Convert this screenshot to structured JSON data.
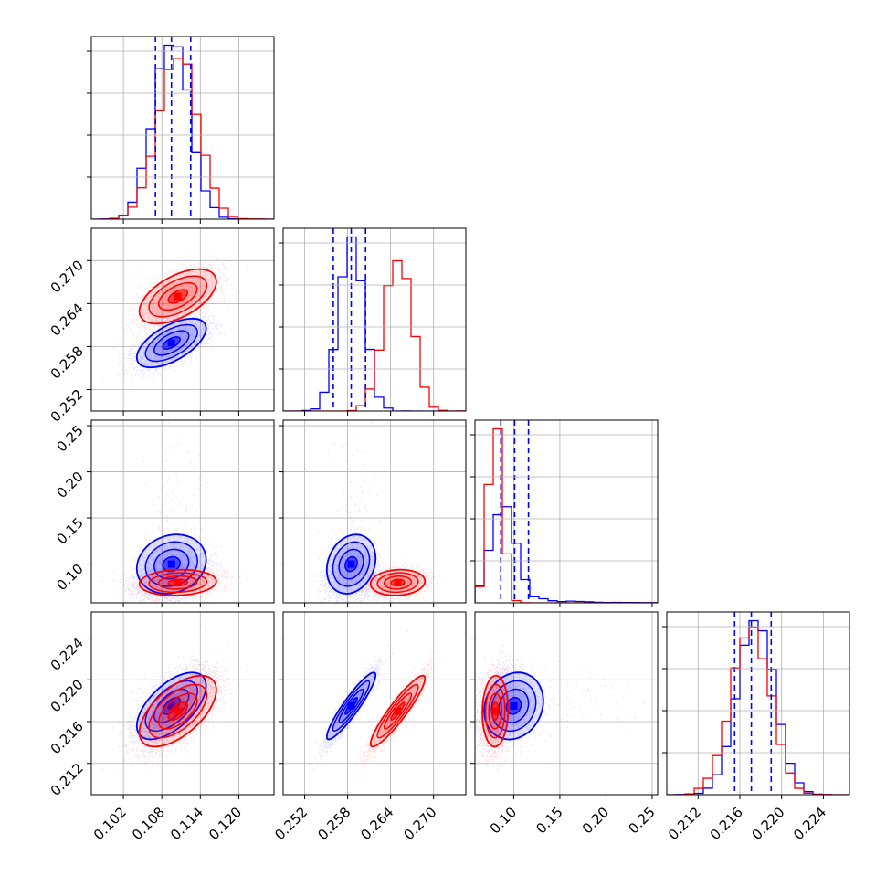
{
  "chart_data": {
    "type": "corner",
    "grid": true,
    "series": [
      {
        "name": "",
        "color": "#0000ff",
        "mean": [
          0.1095,
          0.2585,
          0.1,
          0.2175
        ],
        "std": [
          0.0027,
          0.0017,
          0.016,
          0.0016
        ],
        "corr": {
          "1-0": 0.6,
          "2-0": 0.15,
          "2-1": 0.2,
          "3-0": 0.6,
          "3-1": 0.92,
          "3-2": 0.15
        },
        "quantiles_16_50_84": [
          [
            0.107,
            0.1095,
            0.1125
          ],
          [
            0.256,
            0.2585,
            0.2605
          ],
          [
            0.086,
            0.101,
            0.116
          ],
          [
            0.2155,
            0.2171,
            0.219
          ]
        ]
      },
      {
        "name": "",
        "color": "#ff0000",
        "mean": [
          0.1105,
          0.265,
          0.08,
          0.217
        ],
        "std": [
          0.003,
          0.0019,
          0.007,
          0.0017
        ],
        "corr": {
          "1-0": 0.55,
          "2-0": 0.1,
          "2-1": 0.1,
          "3-0": 0.6,
          "3-1": 0.92,
          "3-2": 0.05
        },
        "quantiles_16_50_84": []
      }
    ],
    "panels": [
      {
        "param": 0,
        "range": [
          0.097,
          0.1255
        ],
        "ticks": [
          0.102,
          0.108,
          0.114,
          0.12
        ],
        "tick_labels": [
          "0.102",
          "0.108",
          "0.114",
          "0.120"
        ]
      },
      {
        "param": 1,
        "range": [
          0.249,
          0.2745
        ],
        "ticks": [
          0.252,
          0.258,
          0.264,
          0.27
        ],
        "tick_labels": [
          "0.252",
          "0.258",
          "0.264",
          "0.270"
        ]
      },
      {
        "param": 2,
        "range": [
          0.058,
          0.256
        ],
        "ticks": [
          0.1,
          0.15,
          0.2,
          0.25
        ],
        "tick_labels": [
          "0.10",
          "0.15",
          "0.20",
          "0.25"
        ]
      },
      {
        "param": 3,
        "range": [
          0.209,
          0.2265
        ],
        "ticks": [
          0.212,
          0.216,
          0.22,
          0.224
        ],
        "tick_labels": [
          "0.212",
          "0.216",
          "0.220",
          "0.224"
        ]
      }
    ]
  }
}
